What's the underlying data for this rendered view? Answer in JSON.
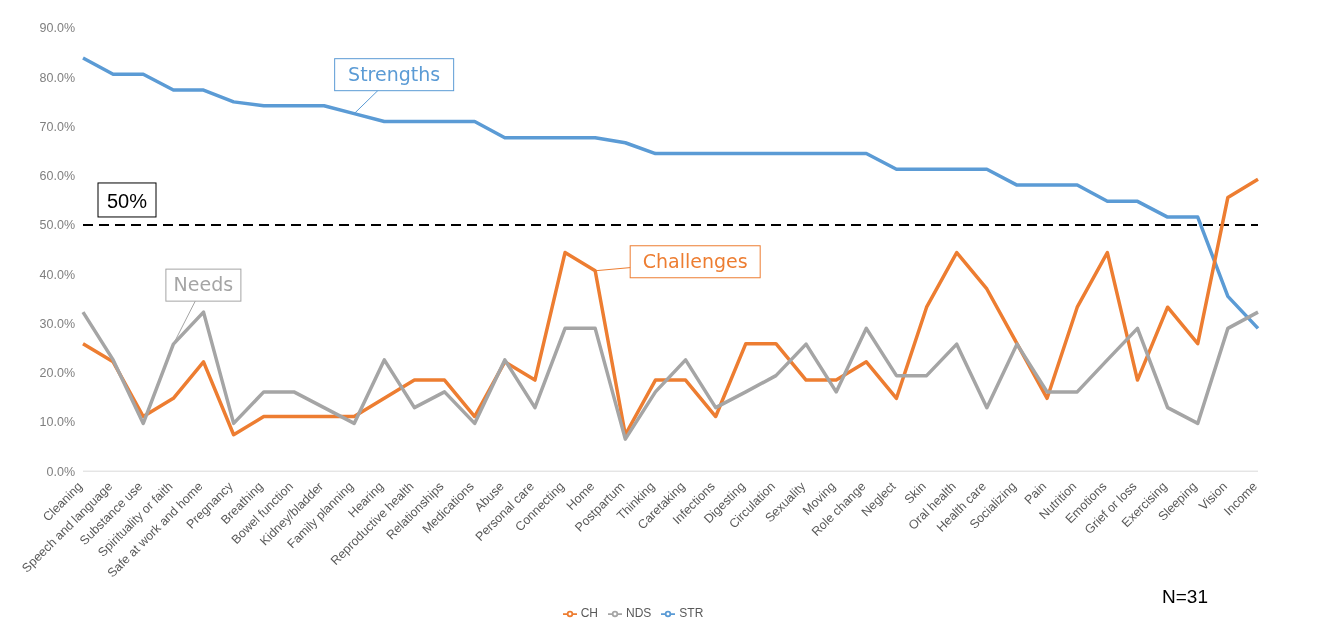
{
  "chart_data": {
    "type": "line",
    "categories": [
      "Cleaning",
      "Speech and language",
      "Substance use",
      "Spirituality or faith",
      "Safe at work and home",
      "Pregnancy",
      "Breathing",
      "Bowel function",
      "Kidney/bladder",
      "Family planning",
      "Hearing",
      "Reproductive health",
      "Relationships",
      "Medications",
      "Abuse",
      "Personal care",
      "Connecting",
      "Home",
      "Postpartum",
      "Thinking",
      "Caretaking",
      "Infections",
      "Digesting",
      "Circulation",
      "Sexuality",
      "Moving",
      "Role change",
      "Neglect",
      "Skin",
      "Oral health",
      "Health care",
      "Socializing",
      "Pain",
      "Nutrition",
      "Emotions",
      "Grief or loss",
      "Exercising",
      "Sleeping",
      "Vision",
      "Income"
    ],
    "series": [
      {
        "name": "STR",
        "color": "#5b9bd5",
        "values": [
          83.9,
          80.6,
          80.6,
          77.4,
          77.4,
          75.0,
          74.2,
          74.2,
          74.2,
          72.6,
          71.0,
          71.0,
          71.0,
          71.0,
          67.7,
          67.7,
          67.7,
          67.7,
          66.7,
          64.5,
          64.5,
          64.5,
          64.5,
          64.5,
          64.5,
          64.5,
          64.5,
          61.3,
          61.3,
          61.3,
          61.3,
          58.1,
          58.1,
          58.1,
          54.8,
          54.8,
          51.6,
          51.6,
          35.5,
          29.0
        ]
      },
      {
        "name": "CH",
        "color": "#ed7d31",
        "values": [
          25.9,
          22.2,
          11.1,
          14.8,
          22.2,
          7.4,
          11.1,
          11.1,
          11.1,
          11.1,
          14.8,
          18.5,
          18.5,
          11.1,
          22.2,
          18.5,
          44.4,
          40.7,
          7.4,
          18.5,
          18.5,
          11.1,
          25.9,
          25.9,
          18.5,
          18.5,
          22.2,
          14.8,
          33.3,
          44.4,
          37.0,
          25.9,
          14.8,
          33.3,
          44.4,
          18.5,
          33.3,
          25.9,
          55.6,
          59.3
        ]
      },
      {
        "name": "NDS",
        "color": "#a5a5a5",
        "values": [
          32.3,
          22.6,
          9.7,
          25.8,
          32.3,
          9.7,
          16.1,
          16.1,
          12.9,
          9.7,
          22.6,
          12.9,
          16.1,
          9.7,
          22.6,
          12.9,
          29.0,
          29.0,
          6.5,
          16.1,
          22.6,
          12.9,
          16.1,
          19.4,
          25.8,
          16.1,
          29.0,
          19.4,
          19.4,
          25.8,
          12.9,
          25.8,
          16.1,
          16.1,
          22.6,
          29.0,
          12.9,
          9.7,
          29.0,
          32.3
        ]
      }
    ],
    "ylim": [
      0,
      90
    ],
    "yticks": [
      {
        "value": 0,
        "label": "0.0%"
      },
      {
        "value": 10,
        "label": "10.0%"
      },
      {
        "value": 20,
        "label": "20.0%"
      },
      {
        "value": 30,
        "label": "30.0%"
      },
      {
        "value": 40,
        "label": "40.0%"
      },
      {
        "value": 50,
        "label": "50.0%"
      },
      {
        "value": 60,
        "label": "60.0%"
      },
      {
        "value": 70,
        "label": "70.0%"
      },
      {
        "value": 80,
        "label": "80.0%"
      },
      {
        "value": 90,
        "label": "90.0%"
      }
    ],
    "ref_lines": [
      {
        "axis": "y",
        "value": 50,
        "label": "50%",
        "color": "#000000",
        "line_style": "dashed"
      }
    ],
    "annotations": [
      {
        "text": "Strengths",
        "x": "Family planning",
        "y": 72.6
      },
      {
        "text": "Needs",
        "x": "Spirituality or faith",
        "y": 25.8
      },
      {
        "text": "Challenges",
        "x": "Home",
        "y": 40.7
      },
      "N=31"
    ],
    "grid": false,
    "legend": "bottom",
    "marker": "none",
    "line_style": "solid"
  }
}
